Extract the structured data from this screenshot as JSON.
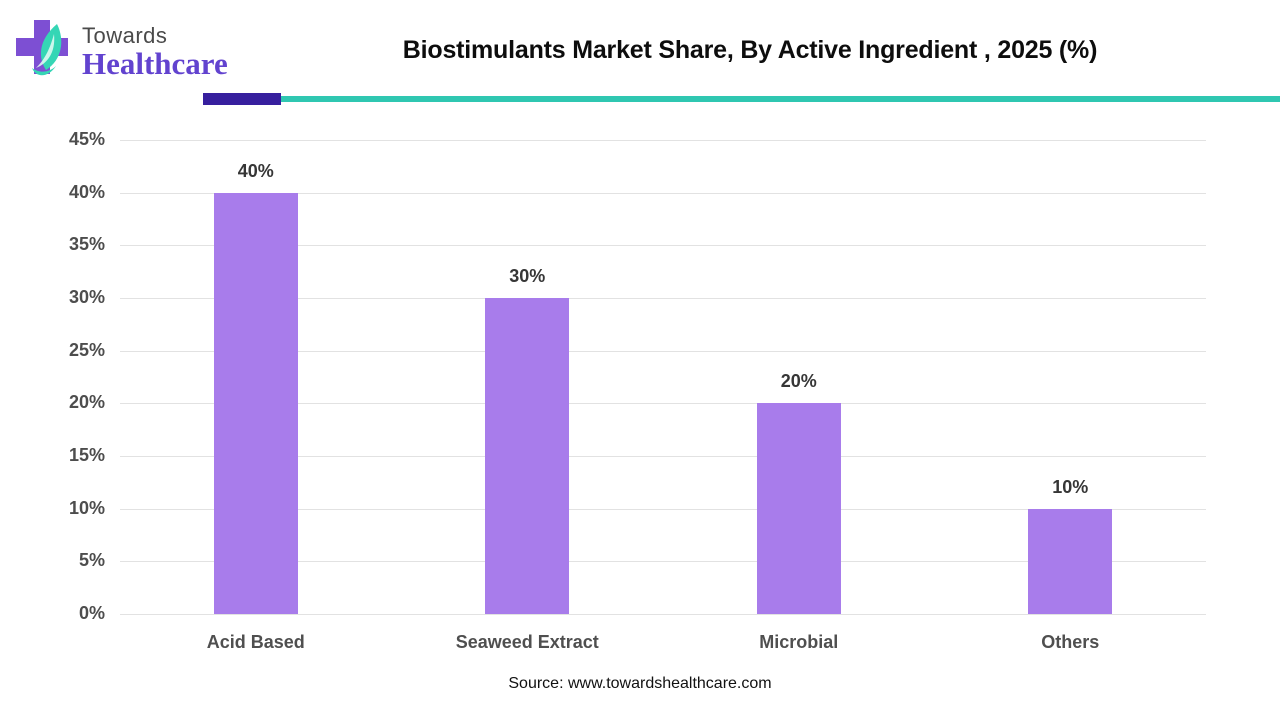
{
  "header": {
    "logo": {
      "line1": "Towards",
      "line2": "Healthcare"
    },
    "title": "Biostimulants Market Share, By Active Ingredient , 2025 (%)"
  },
  "chart_data": {
    "type": "bar",
    "title": "Biostimulants Market Share, By Active Ingredient , 2025 (%)",
    "categories": [
      "Acid Based",
      "Seaweed Extract",
      "Microbial",
      "Others"
    ],
    "values": [
      40,
      30,
      20,
      10
    ],
    "value_labels": [
      "40%",
      "30%",
      "20%",
      "10%"
    ],
    "xlabel": "",
    "ylabel": "",
    "ylim": [
      0,
      45
    ],
    "ytick_step": 5,
    "ytick_suffix": "%",
    "grid": true,
    "legend": "none",
    "bar_color": "#a87ceb"
  },
  "footer": {
    "source": "Source: www.towardshealthcare.com"
  },
  "colors": {
    "bar": "#a87ceb",
    "rule_purple": "#371f9e",
    "rule_teal": "#2fc7b1",
    "logo_cross_purple": "#7d4fd3",
    "logo_leaf_teal": "#35d6b5",
    "logo_leaf_light": "#8fead8",
    "logo_text_purple": "#6243cf",
    "axis_text": "#4d4d4d",
    "title_text": "#0d0d0d"
  }
}
